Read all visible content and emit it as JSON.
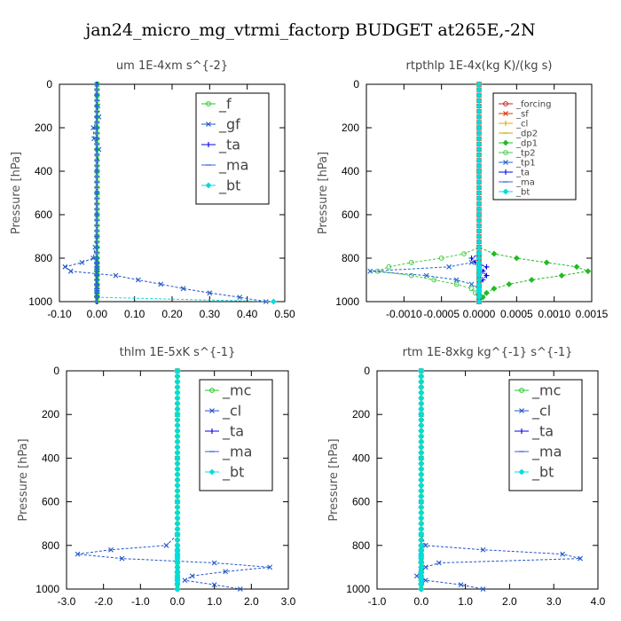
{
  "page_title": "jan24_micro_mg_vtrmi_factorp  BUDGET at265E,-2N",
  "chart_data": [
    {
      "type": "line",
      "title": "um   1E-4xm s^{-2}",
      "ylabel": "Pressure [hPa]",
      "xlim": [
        -0.1,
        0.5
      ],
      "ylim": [
        1000,
        0
      ],
      "xticks": [
        -0.1,
        0.0,
        0.1,
        0.2,
        0.3,
        0.4,
        0.5
      ],
      "xtick_labels": [
        "-0.10",
        "0.00",
        "0.10",
        "0.20",
        "0.30",
        "0.40",
        "0.50"
      ],
      "yticks": [
        0,
        200,
        400,
        600,
        800,
        1000
      ],
      "legend_position": "top-right",
      "y": [
        0,
        50,
        100,
        150,
        200,
        250,
        300,
        400,
        500,
        600,
        700,
        750,
        800,
        820,
        840,
        860,
        880,
        900,
        920,
        940,
        960,
        980,
        1000
      ],
      "series": [
        {
          "name": "_f",
          "color": "#22cc22",
          "values": [
            0,
            0,
            0,
            0,
            0,
            0,
            0,
            0,
            0,
            0,
            0,
            0,
            0,
            0,
            0,
            0,
            0,
            0,
            0,
            0,
            0,
            0,
            0
          ]
        },
        {
          "name": "_gf",
          "color": "#2255cc",
          "values": [
            0,
            0,
            0.002,
            0.005,
            -0.01,
            -0.008,
            0.005,
            0,
            0,
            0,
            0,
            -0.005,
            -0.01,
            -0.04,
            -0.085,
            -0.07,
            0.05,
            0.11,
            0.17,
            0.23,
            0.3,
            0.38,
            0.45
          ]
        },
        {
          "name": "_ta",
          "color": "#0000ee",
          "values": [
            0,
            0,
            0,
            0,
            0,
            0,
            0,
            0,
            0,
            0,
            0,
            0,
            0,
            0,
            0,
            0,
            0,
            0,
            0,
            0,
            0,
            0,
            0
          ]
        },
        {
          "name": "_ma",
          "color": "#3366dd",
          "values": [
            0,
            0,
            0,
            0,
            0,
            0,
            0,
            0,
            0,
            0,
            0,
            0,
            0,
            0,
            0,
            0,
            0,
            0,
            0,
            0,
            0,
            0,
            0
          ]
        },
        {
          "name": "_bt",
          "color": "#00dddd",
          "values": [
            0,
            0,
            0,
            0,
            0,
            0,
            0,
            0,
            0,
            0,
            0,
            0,
            0,
            0,
            0,
            0,
            0,
            0,
            0,
            0,
            0,
            0,
            0.47
          ]
        }
      ]
    },
    {
      "type": "line",
      "title": "rtpthlp   1E-4x(kg K)/(kg s)",
      "ylabel": "Pressure [hPa]",
      "xlim": [
        -0.0015,
        0.0015
      ],
      "ylim": [
        1000,
        0
      ],
      "xticks": [
        -0.001,
        -0.0005,
        0.0,
        0.0005,
        0.001,
        0.0015
      ],
      "xtick_labels": [
        "-0.0010",
        "-0.0005",
        "0.0000",
        "0.0005",
        "0.0010",
        "0.0015"
      ],
      "yticks": [
        0,
        200,
        400,
        600,
        800,
        1000
      ],
      "legend_position": "top-right",
      "y": [
        0,
        200,
        400,
        600,
        750,
        780,
        800,
        820,
        840,
        860,
        880,
        900,
        920,
        940,
        960,
        980,
        1000
      ],
      "series": [
        {
          "name": "_forcing",
          "color": "#cc2222",
          "values": [
            0,
            0,
            0,
            0,
            0,
            0,
            0,
            0,
            0,
            0,
            0,
            0,
            0,
            0,
            0,
            0,
            0
          ]
        },
        {
          "name": "_sf",
          "color": "#dd3300",
          "values": [
            0,
            0,
            0,
            0,
            0,
            0,
            0,
            0,
            0,
            0,
            0,
            0,
            0,
            0,
            0,
            0,
            0
          ]
        },
        {
          "name": "_cl",
          "color": "#ddaa00",
          "values": [
            0,
            0,
            0,
            0,
            0,
            0,
            0,
            0,
            0,
            0,
            0,
            0,
            0,
            0,
            0,
            0,
            0
          ]
        },
        {
          "name": "_dp2",
          "color": "#ccaa00",
          "values": [
            0,
            0,
            0,
            0,
            0,
            0,
            0,
            0,
            0,
            0,
            0,
            0,
            0,
            0,
            0,
            0,
            0
          ]
        },
        {
          "name": "_dp1",
          "color": "#22bb22",
          "values": [
            0,
            0,
            0,
            0,
            0,
            0.0002,
            0.0005,
            0.0009,
            0.0013,
            0.00145,
            0.0011,
            0.0007,
            0.0004,
            0.0002,
            0.0001,
            5e-05,
            0
          ]
        },
        {
          "name": "_tp2",
          "color": "#44cc44",
          "values": [
            0,
            0,
            0,
            0,
            0,
            -0.0002,
            -0.0005,
            -0.0009,
            -0.0012,
            -0.00135,
            -0.0009,
            -0.0006,
            -0.0003,
            -0.0001,
            -5e-05,
            0,
            0
          ]
        },
        {
          "name": "_tp1",
          "color": "#2266cc",
          "values": [
            0,
            0,
            0,
            0,
            0,
            0,
            0,
            -0.0001,
            -0.0004,
            -0.00145,
            -0.0007,
            -0.0003,
            -0.0001,
            0,
            0,
            0,
            0
          ]
        },
        {
          "name": "_ta",
          "color": "#0000ee",
          "values": [
            0,
            0,
            0,
            0,
            0,
            0,
            -0.0001,
            -5e-05,
            0.0001,
            5e-05,
            0.0001,
            5e-05,
            0,
            0,
            0,
            0,
            0
          ]
        },
        {
          "name": "_ma",
          "color": "#3366dd",
          "values": [
            0,
            0,
            0,
            0,
            0,
            0,
            0,
            0,
            0,
            0,
            0,
            0,
            0,
            0,
            0,
            0,
            0
          ]
        },
        {
          "name": "_bt",
          "color": "#00dddd",
          "values": [
            0,
            0,
            0,
            0,
            0,
            0,
            0,
            0,
            0,
            0,
            0,
            0,
            0,
            0,
            0,
            0,
            0
          ]
        }
      ]
    },
    {
      "type": "line",
      "title": "thlm   1E-5xK s^{-1}",
      "ylabel": "Pressure [hPa]",
      "xlim": [
        -3.0,
        3.0
      ],
      "ylim": [
        1000,
        0
      ],
      "xticks": [
        -3,
        -2,
        -1,
        0,
        1,
        2,
        3
      ],
      "xtick_labels": [
        "-3.0",
        "-2.0",
        "-1.0",
        "0.0",
        "1.0",
        "2.0",
        "3.0"
      ],
      "yticks": [
        0,
        200,
        400,
        600,
        800,
        1000
      ],
      "legend_position": "top-right",
      "y": [
        0,
        200,
        400,
        600,
        750,
        800,
        820,
        840,
        860,
        880,
        900,
        920,
        940,
        960,
        980,
        1000
      ],
      "series": [
        {
          "name": "_mc",
          "color": "#22cc22",
          "values": [
            0,
            0,
            0,
            0,
            0,
            0,
            0,
            0,
            0,
            0,
            0,
            0,
            0,
            0,
            0,
            0
          ]
        },
        {
          "name": "_cl",
          "color": "#2255cc",
          "values": [
            0,
            0,
            0,
            0,
            0,
            -0.3,
            -1.8,
            -2.7,
            -1.5,
            1.0,
            2.5,
            1.3,
            0.4,
            0.2,
            1.0,
            1.7
          ]
        },
        {
          "name": "_ta",
          "color": "#0000ee",
          "values": [
            0,
            0,
            0,
            0,
            0,
            0,
            0,
            0,
            0,
            0,
            0,
            0,
            0,
            0,
            0,
            0
          ]
        },
        {
          "name": "_ma",
          "color": "#3366dd",
          "values": [
            0,
            0,
            0,
            0,
            0,
            0,
            0,
            0,
            0,
            0,
            0,
            0,
            0,
            0,
            0,
            0
          ]
        },
        {
          "name": "_bt",
          "color": "#00dddd",
          "values": [
            0,
            0,
            0,
            0,
            0,
            0,
            0,
            0,
            0,
            0,
            0,
            0,
            0,
            0,
            0,
            0
          ]
        }
      ]
    },
    {
      "type": "line",
      "title": "rtm   1E-8xkg kg^{-1} s^{-1}",
      "ylabel": "Pressure [hPa]",
      "xlim": [
        -1.0,
        4.0
      ],
      "ylim": [
        1000,
        0
      ],
      "xticks": [
        -1,
        0,
        1,
        2,
        3,
        4
      ],
      "xtick_labels": [
        "-1.0",
        "0.0",
        "1.0",
        "2.0",
        "3.0",
        "4.0"
      ],
      "yticks": [
        0,
        200,
        400,
        600,
        800,
        1000
      ],
      "legend_position": "top-right",
      "y": [
        0,
        200,
        400,
        600,
        750,
        800,
        820,
        840,
        860,
        880,
        900,
        920,
        940,
        960,
        980,
        1000
      ],
      "series": [
        {
          "name": "_mc",
          "color": "#22cc22",
          "values": [
            0,
            0,
            0,
            0,
            0,
            0,
            0,
            0,
            0,
            0,
            0,
            0,
            0,
            0,
            0,
            0
          ]
        },
        {
          "name": "_cl",
          "color": "#2255cc",
          "values": [
            0,
            0,
            0,
            0,
            0,
            0.1,
            1.4,
            3.2,
            3.6,
            0.4,
            0.1,
            0.0,
            -0.1,
            0.1,
            0.9,
            1.4
          ]
        },
        {
          "name": "_ta",
          "color": "#0000ee",
          "values": [
            0,
            0,
            0,
            0,
            0,
            0,
            0,
            0,
            0,
            0,
            0,
            0,
            0,
            0,
            0,
            0
          ]
        },
        {
          "name": "_ma",
          "color": "#3366dd",
          "values": [
            0,
            0,
            0,
            0,
            0,
            0,
            0,
            0,
            0,
            0,
            0,
            0,
            0,
            0,
            0,
            0
          ]
        },
        {
          "name": "_bt",
          "color": "#00dddd",
          "values": [
            0,
            0,
            0,
            0,
            0,
            0,
            0,
            0,
            0,
            0,
            0,
            0,
            0,
            0,
            0,
            0
          ]
        }
      ]
    }
  ]
}
